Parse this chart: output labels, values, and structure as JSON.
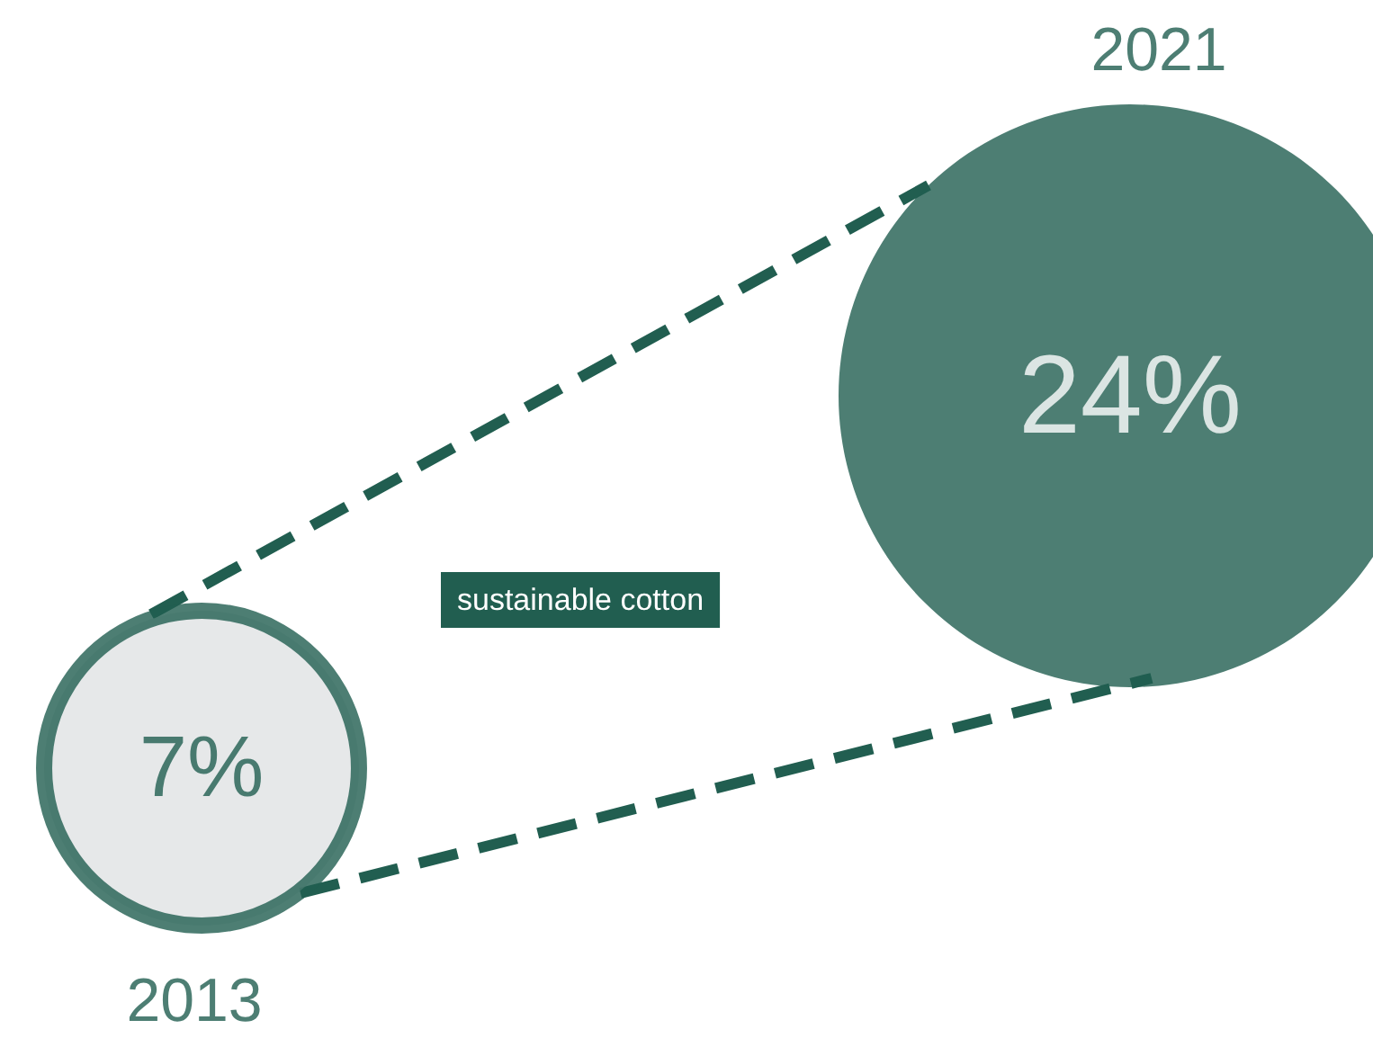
{
  "chart_data": {
    "type": "other",
    "categories": [
      "2013",
      "2021"
    ],
    "values": [
      7,
      24
    ],
    "value_labels": [
      "7%",
      "24%"
    ],
    "colors": [
      "#e0e2e4",
      "#215e50"
    ],
    "color": "#215e50",
    "annotations": [
      "sustainable cotton"
    ]
  }
}
